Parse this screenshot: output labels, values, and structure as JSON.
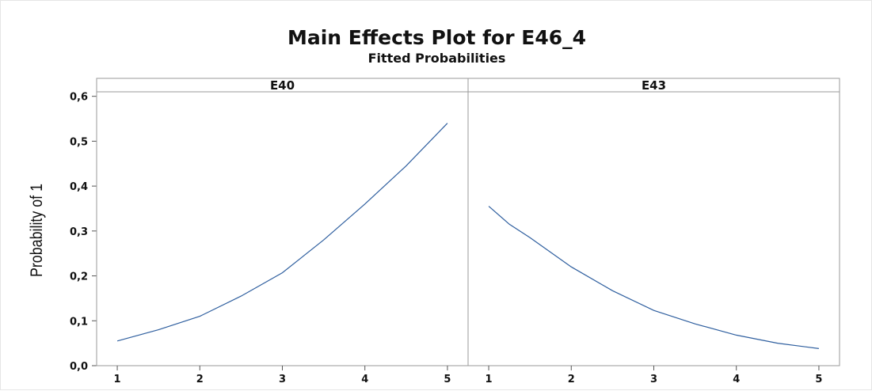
{
  "chart_data": {
    "type": "line",
    "title": "Main Effects Plot for E46_4",
    "subtitle": "Fitted Probabilities",
    "ylabel": "Probability of 1",
    "ylim": [
      0.0,
      0.61
    ],
    "yticks": [
      "0,0",
      "0,1",
      "0,2",
      "0,3",
      "0,4",
      "0,5",
      "0,6"
    ],
    "ytick_values": [
      0.0,
      0.1,
      0.2,
      0.3,
      0.4,
      0.5,
      0.6
    ],
    "xlim": [
      0.75,
      5.25
    ],
    "xticks": [
      "1",
      "2",
      "3",
      "4",
      "5"
    ],
    "xtick_values": [
      1,
      2,
      3,
      4,
      5
    ],
    "grid": false,
    "line_color": "#2f5f9f",
    "panels": [
      {
        "name": "E40",
        "x": [
          1,
          1.5,
          2,
          2.5,
          3,
          3.5,
          4,
          4.5,
          5
        ],
        "y": [
          0.055,
          0.08,
          0.11,
          0.155,
          0.207,
          0.28,
          0.36,
          0.445,
          0.54
        ]
      },
      {
        "name": "E43",
        "x": [
          1,
          1.25,
          1.5,
          2,
          2.5,
          3,
          3.5,
          4,
          4.5,
          5
        ],
        "y": [
          0.355,
          0.315,
          0.285,
          0.22,
          0.167,
          0.123,
          0.093,
          0.068,
          0.05,
          0.038
        ]
      }
    ]
  }
}
